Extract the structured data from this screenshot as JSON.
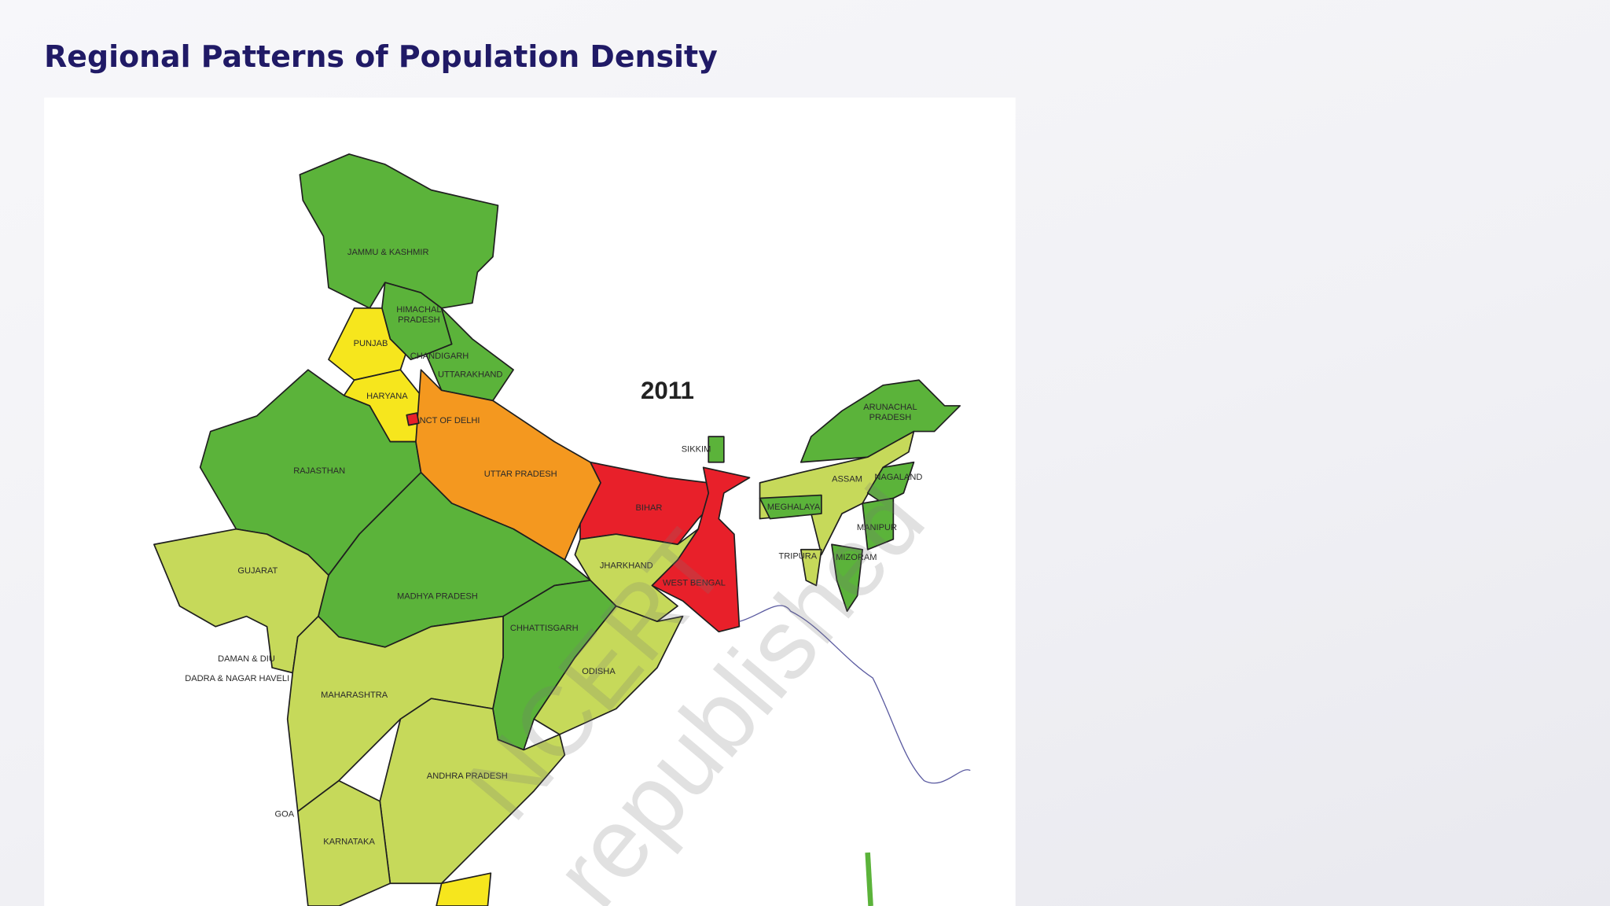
{
  "header": {
    "title": "Regional Patterns of Population Density"
  },
  "map": {
    "year": "2011",
    "watermark": [
      "NCERT",
      "republished"
    ],
    "labels": [
      [
        "JAMMU & KASHMIR"
      ],
      [
        "HIMACHAL",
        "PRADESH"
      ],
      [
        "PUNJAB"
      ],
      [
        "CHANDIGARH"
      ],
      [
        "UTTARAKHAND"
      ],
      [
        "HARYANA"
      ],
      [
        "NCT OF DELHI"
      ],
      [
        "RAJASTHAN"
      ],
      [
        "UTTAR PRADESH"
      ],
      [
        "SIKKIM"
      ],
      [
        "BIHAR"
      ],
      [
        "ARUNACHAL",
        "PRADESH"
      ],
      [
        "ASSAM"
      ],
      [
        "NAGALAND"
      ],
      [
        "MEGHALAYA"
      ],
      [
        "MANIPUR"
      ],
      [
        "TRIPURA"
      ],
      [
        "MIZORAM"
      ],
      [
        "JHARKHAND"
      ],
      [
        "WEST BENGAL"
      ],
      [
        "GUJARAT"
      ],
      [
        "MADHYA PRADESH"
      ],
      [
        "CHHATTISGARH"
      ],
      [
        "ODISHA"
      ],
      [
        "DAMAN & DIU"
      ],
      [
        "DADRA & NAGAR HAVELI"
      ],
      [
        "MAHARASHTRA"
      ],
      [
        "ANDHRA PRADESH"
      ],
      [
        "GOA"
      ],
      [
        "KARNATAKA"
      ]
    ]
  }
}
